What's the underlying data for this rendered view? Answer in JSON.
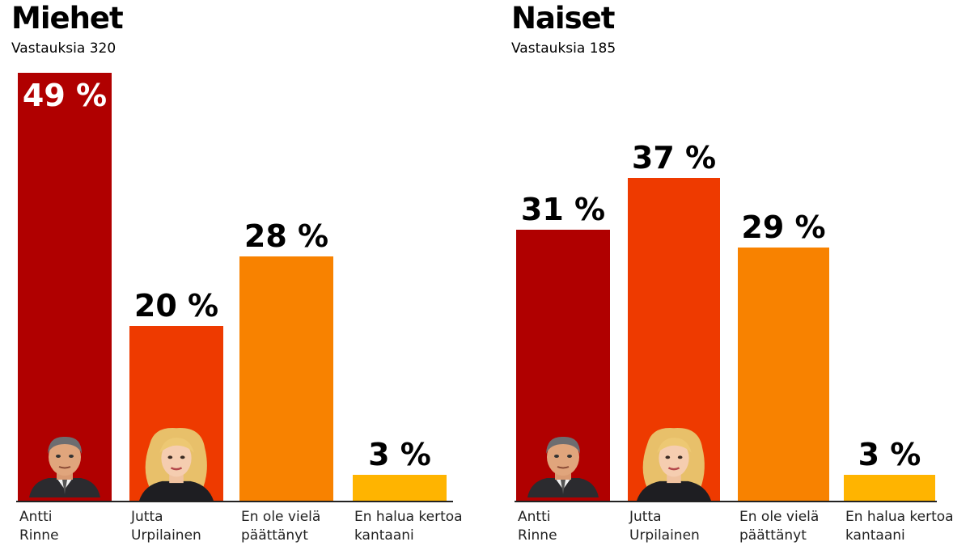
{
  "colors": {
    "antti": "#b00000",
    "jutta": "#ee3a00",
    "undecided": "#f88200",
    "refuse": "#ffb400"
  },
  "chart_data": [
    {
      "type": "bar",
      "title": "Miehet",
      "subtitle": "Vastauksia 320",
      "categories": [
        "Antti\nRinne",
        "Jutta\nUrpilainen",
        "En ole vielä\npäättänyt",
        "En halua kertoa\nkantaani"
      ],
      "values": [
        49,
        20,
        28,
        3
      ],
      "value_labels": [
        "49 %",
        "20 %",
        "28 %",
        "3 %"
      ],
      "ylim": [
        0,
        49
      ],
      "grid": false,
      "legend": "none"
    },
    {
      "type": "bar",
      "title": "Naiset",
      "subtitle": "Vastauksia 185",
      "categories": [
        "Antti\nRinne",
        "Jutta\nUrpilainen",
        "En ole vielä\npäättänyt",
        "En halua kertoa\nkantaani"
      ],
      "values": [
        31,
        37,
        29,
        3
      ],
      "value_labels": [
        "31 %",
        "37 %",
        "29 %",
        "3 %"
      ],
      "ylim": [
        0,
        49
      ],
      "grid": false,
      "legend": "none"
    }
  ],
  "portraits": [
    "man-portrait-icon",
    "woman-portrait-icon"
  ]
}
